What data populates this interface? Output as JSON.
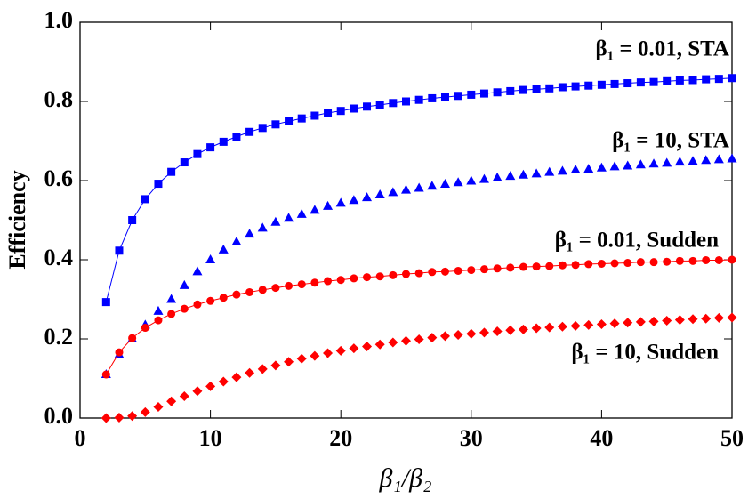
{
  "chart_data": {
    "type": "scatter",
    "xlabel": "β₁/β₂",
    "ylabel": "Efficiency",
    "xlim": [
      0,
      50
    ],
    "ylim": [
      0,
      1
    ],
    "xticks": [
      0,
      10,
      20,
      30,
      40,
      50
    ],
    "yticks": [
      {
        "value": 0,
        "label": "0.0"
      },
      {
        "value": 0.2,
        "label": "0.2"
      },
      {
        "value": 0.4,
        "label": "0.4"
      },
      {
        "value": 0.6,
        "label": "0.6"
      },
      {
        "value": 0.8,
        "label": "0.8"
      },
      {
        "value": 1,
        "label": "1.0"
      }
    ],
    "x": [
      2,
      3,
      4,
      5,
      6,
      7,
      8,
      9,
      10,
      11,
      12,
      13,
      14,
      15,
      16,
      17,
      18,
      19,
      20,
      21,
      22,
      23,
      24,
      25,
      26,
      27,
      28,
      29,
      30,
      31,
      32,
      33,
      34,
      35,
      36,
      37,
      38,
      39,
      40,
      41,
      42,
      43,
      44,
      45,
      46,
      47,
      48,
      49,
      50
    ],
    "series": [
      {
        "name": "β₁ = 0.01, STA",
        "color": "#0000ff",
        "marker": "square",
        "line": true,
        "values": [
          0.293,
          0.423,
          0.5,
          0.553,
          0.592,
          0.622,
          0.646,
          0.667,
          0.684,
          0.698,
          0.711,
          0.723,
          0.733,
          0.742,
          0.75,
          0.757,
          0.764,
          0.771,
          0.776,
          0.782,
          0.787,
          0.791,
          0.796,
          0.8,
          0.804,
          0.808,
          0.811,
          0.814,
          0.817,
          0.82,
          0.823,
          0.826,
          0.829,
          0.831,
          0.833,
          0.836,
          0.838,
          0.84,
          0.842,
          0.844,
          0.846,
          0.848,
          0.849,
          0.851,
          0.853,
          0.854,
          0.856,
          0.857,
          0.859
        ]
      },
      {
        "name": "β₁ = 10, STA",
        "color": "#0000ff",
        "marker": "triangle",
        "line": false,
        "values": [
          0.11,
          0.16,
          0.2,
          0.235,
          0.27,
          0.3,
          0.335,
          0.37,
          0.4,
          0.425,
          0.445,
          0.465,
          0.48,
          0.495,
          0.505,
          0.515,
          0.525,
          0.535,
          0.543,
          0.55,
          0.557,
          0.564,
          0.57,
          0.576,
          0.581,
          0.586,
          0.591,
          0.595,
          0.599,
          0.603,
          0.607,
          0.611,
          0.614,
          0.617,
          0.621,
          0.624,
          0.627,
          0.629,
          0.632,
          0.635,
          0.637,
          0.64,
          0.642,
          0.644,
          0.647,
          0.649,
          0.651,
          0.653,
          0.655
        ]
      },
      {
        "name": "β₁ = 0.01, Sudden",
        "color": "#ff0000",
        "marker": "circle",
        "line": true,
        "values": [
          0.11,
          0.166,
          0.202,
          0.228,
          0.247,
          0.263,
          0.276,
          0.287,
          0.296,
          0.304,
          0.312,
          0.318,
          0.324,
          0.329,
          0.334,
          0.338,
          0.342,
          0.346,
          0.349,
          0.353,
          0.356,
          0.358,
          0.361,
          0.364,
          0.366,
          0.369,
          0.37,
          0.372,
          0.374,
          0.376,
          0.378,
          0.38,
          0.382,
          0.383,
          0.384,
          0.386,
          0.387,
          0.389,
          0.39,
          0.391,
          0.392,
          0.394,
          0.394,
          0.395,
          0.397,
          0.397,
          0.399,
          0.399,
          0.4
        ]
      },
      {
        "name": "β₁ = 10, Sudden",
        "color": "#ff0000",
        "marker": "diamond",
        "line": false,
        "values": [
          0,
          0.001,
          0.005,
          0.015,
          0.028,
          0.042,
          0.055,
          0.068,
          0.08,
          0.092,
          0.103,
          0.114,
          0.124,
          0.133,
          0.142,
          0.15,
          0.157,
          0.164,
          0.17,
          0.176,
          0.181,
          0.186,
          0.191,
          0.195,
          0.199,
          0.203,
          0.207,
          0.21,
          0.213,
          0.216,
          0.219,
          0.222,
          0.224,
          0.227,
          0.229,
          0.231,
          0.233,
          0.235,
          0.237,
          0.239,
          0.241,
          0.243,
          0.244,
          0.246,
          0.248,
          0.25,
          0.251,
          0.253,
          0.254
        ]
      }
    ]
  }
}
